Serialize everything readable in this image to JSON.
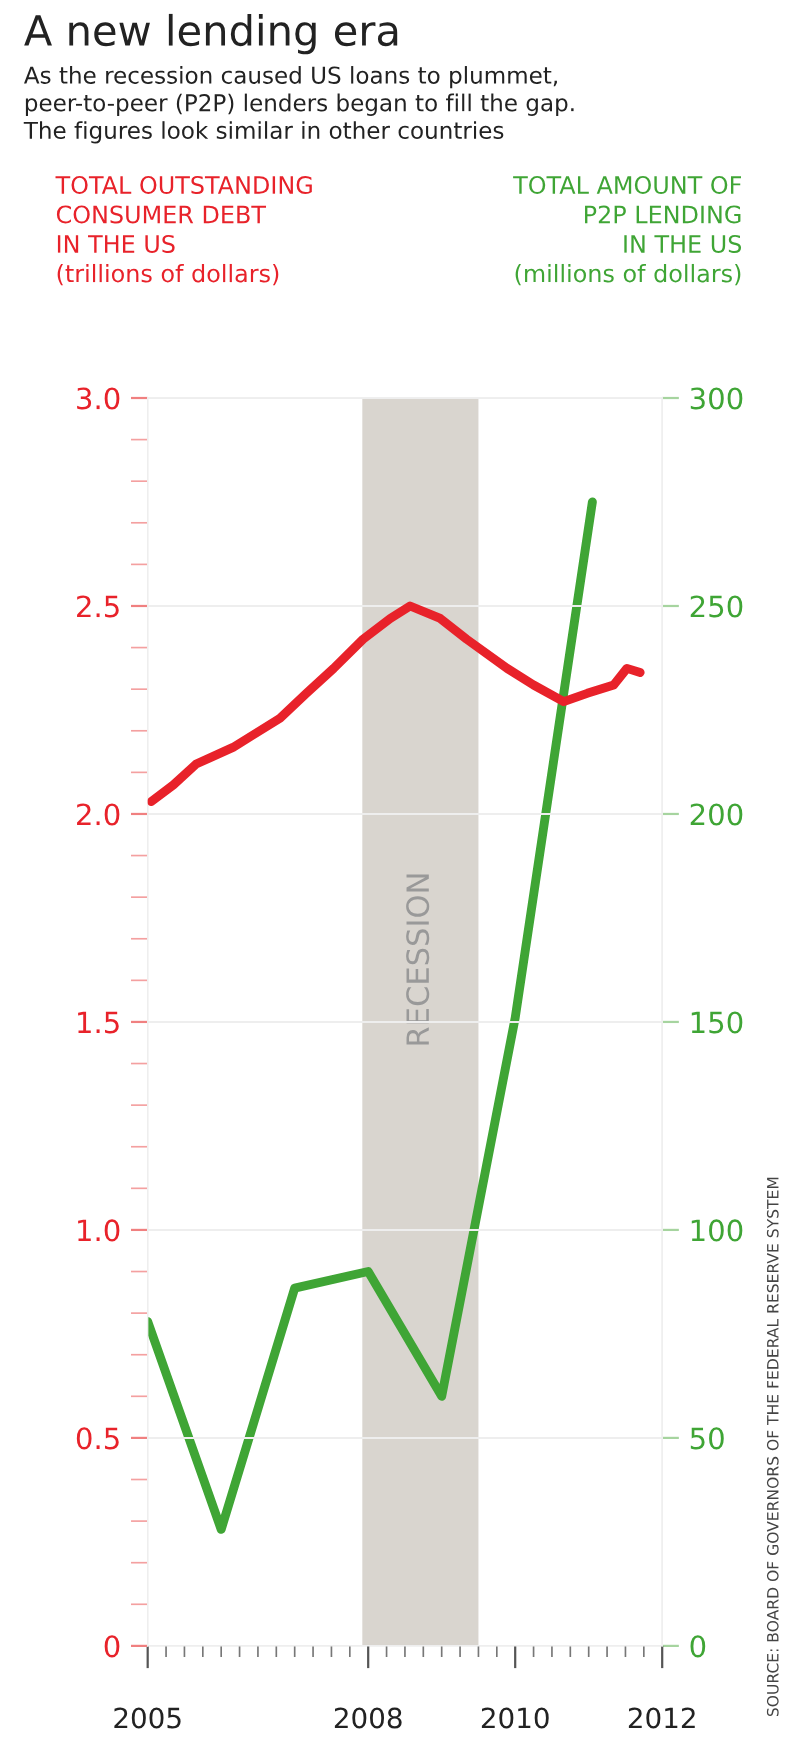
{
  "chart_data": {
    "type": "line",
    "title": "A new lending era",
    "subtitle": "As the recession caused US loans to plummet,\npeer-to-peer (P2P) lenders began to fill the gap.\nThe figures look similar in other countries",
    "ylabel": "TOTAL OUTSTANDING\nCONSUMER DEBT\nIN THE US\n(trillions of dollars)",
    "y2label": "TOTAL AMOUNT OF\nP2P LENDING\nIN THE US\n(millions of dollars)",
    "annotations": [
      "SOURCE: BOARD OF GOVERNORS OF THE FEDERAL RESERVE SYSTEM"
    ],
    "series": [
      {
        "color": "#e8222a",
        "axis": "y",
        "x": [
          2005.05,
          2005.35,
          2005.66,
          2006.16,
          2006.8,
          2007.16,
          2007.53,
          2007.93,
          2008.3,
          2008.57,
          2008.98,
          2009.34,
          2009.89,
          2010.25,
          2010.66,
          2010.98,
          2011.34,
          2011.52,
          2011.7
        ],
        "values": [
          2.03,
          2.07,
          2.12,
          2.16,
          2.23,
          2.29,
          2.35,
          2.42,
          2.47,
          2.5,
          2.47,
          2.42,
          2.35,
          2.31,
          2.27,
          2.29,
          2.31,
          2.35,
          2.34
        ]
      },
      {
        "color": "#3fa535",
        "axis": "y2",
        "x": [
          2005,
          2006,
          2007,
          2008,
          2009,
          2010,
          2011.05
        ],
        "values": [
          78,
          28,
          86,
          90,
          60,
          151,
          275
        ]
      }
    ],
    "xlim": [
      2005,
      2012
    ],
    "xticks": [
      2005,
      {
        "value": 2005.25,
        "label": null
      },
      {
        "value": 2005.5,
        "label": null
      },
      {
        "value": 2005.75,
        "label": null
      },
      {
        "value": 2006,
        "label": null
      },
      {
        "value": 2006.25,
        "label": null
      },
      {
        "value": 2006.5,
        "label": null
      },
      {
        "value": 2006.75,
        "label": null
      },
      {
        "value": 2007,
        "label": null
      },
      {
        "value": 2007.25,
        "label": null
      },
      {
        "value": 2007.5,
        "label": null
      },
      {
        "value": 2007.75,
        "label": null
      },
      2008,
      {
        "value": 2008.25,
        "label": null
      },
      {
        "value": 2008.5,
        "label": null
      },
      {
        "value": 2008.75,
        "label": null
      },
      {
        "value": 2009,
        "label": null
      },
      {
        "value": 2009.25,
        "label": null
      },
      {
        "value": 2009.5,
        "label": null
      },
      {
        "value": 2009.75,
        "label": null
      },
      2010,
      {
        "value": 2010.25,
        "label": null
      },
      {
        "value": 2010.5,
        "label": null
      },
      {
        "value": 2010.75,
        "label": null
      },
      {
        "value": 2011,
        "label": null
      },
      {
        "value": 2011.25,
        "label": null
      },
      {
        "value": 2011.5,
        "label": null
      },
      {
        "value": 2011.75,
        "label": null
      },
      2012
    ],
    "ylim": [
      0,
      3
    ],
    "yticks": [
      0,
      {
        "value": 0.1,
        "label": null
      },
      {
        "value": 0.2,
        "label": null
      },
      {
        "value": 0.3,
        "label": null
      },
      {
        "value": 0.4,
        "label": null
      },
      0.5,
      {
        "value": 0.6,
        "label": null
      },
      {
        "value": 0.7,
        "label": null
      },
      {
        "value": 0.8,
        "label": null
      },
      {
        "value": 0.9,
        "label": null
      },
      {
        "value": 1,
        "label": "1.0"
      },
      {
        "value": 1.1,
        "label": null
      },
      {
        "value": 1.2,
        "label": null
      },
      {
        "value": 1.3,
        "label": null
      },
      {
        "value": 1.4,
        "label": null
      },
      1.5,
      {
        "value": 1.6,
        "label": null
      },
      {
        "value": 1.7,
        "label": null
      },
      {
        "value": 1.8,
        "label": null
      },
      {
        "value": 1.9,
        "label": null
      },
      {
        "value": 2,
        "label": "2.0"
      },
      {
        "value": 2.1,
        "label": null
      },
      {
        "value": 2.2,
        "label": null
      },
      {
        "value": 2.3,
        "label": null
      },
      {
        "value": 2.4,
        "label": null
      },
      2.5,
      {
        "value": 2.6,
        "label": null
      },
      {
        "value": 2.7,
        "label": null
      },
      {
        "value": 2.8,
        "label": null
      },
      {
        "value": 2.9,
        "label": null
      },
      {
        "value": 3,
        "label": "3.0"
      }
    ],
    "y2lim": [
      0,
      300
    ],
    "y2ticks": [
      0,
      50,
      100,
      150,
      200,
      250,
      300
    ],
    "bands": [
      {
        "axis": "x",
        "from": 2007.92,
        "to": 2009.5,
        "label": "RECESSION",
        "color": "#d9d5cf"
      }
    ],
    "grid": "y",
    "legend": false,
    "marker": "none",
    "line_style": "solid"
  }
}
